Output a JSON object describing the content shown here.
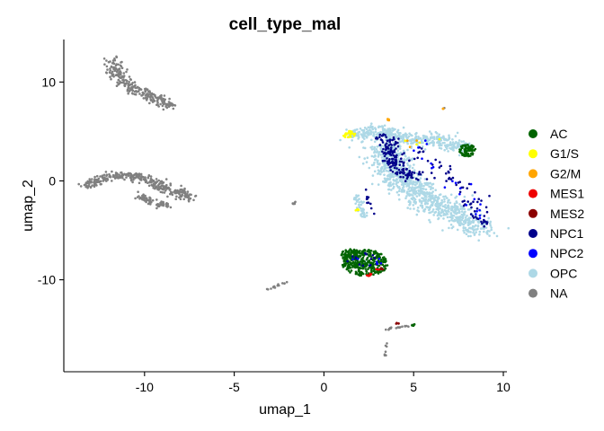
{
  "chart_data": {
    "type": "scatter",
    "title": "cell_type_mal",
    "xlabel": "umap_1",
    "ylabel": "umap_2",
    "xlim": [
      -14.5,
      10.2
    ],
    "ylim": [
      -19.3,
      14.3
    ],
    "x_ticks": [
      -10,
      -5,
      0,
      5,
      10
    ],
    "y_ticks": [
      -10,
      0,
      10
    ],
    "grid": false,
    "legend_position": "right",
    "series": [
      {
        "name": "AC",
        "color": "#006400"
      },
      {
        "name": "G1/S",
        "color": "#FFFF00"
      },
      {
        "name": "G2/M",
        "color": "#FFA500"
      },
      {
        "name": "MES1",
        "color": "#EE0000"
      },
      {
        "name": "MES2",
        "color": "#8B0000"
      },
      {
        "name": "NPC1",
        "color": "#00008B"
      },
      {
        "name": "NPC2",
        "color": "#0000FF"
      },
      {
        "name": "OPC",
        "color": "#ADD8E6"
      },
      {
        "name": "NA",
        "color": "#808080"
      }
    ],
    "clusters": [
      {
        "series": "NA",
        "shape": "curve",
        "points": [
          [
            -11.8,
            12.2
          ],
          [
            -11.6,
            11.0
          ],
          [
            -11.0,
            9.8
          ],
          [
            -10.0,
            8.8
          ],
          [
            -9.0,
            8.0
          ],
          [
            -8.4,
            7.5
          ]
        ],
        "width": 0.55,
        "n": 260
      },
      {
        "series": "NA",
        "shape": "curve",
        "points": [
          [
            -13.3,
            -0.6
          ],
          [
            -12.5,
            0.2
          ],
          [
            -11.5,
            0.6
          ],
          [
            -10.5,
            0.5
          ],
          [
            -9.5,
            -0.1
          ],
          [
            -8.5,
            -1.0
          ],
          [
            -7.5,
            -1.6
          ]
        ],
        "width": 0.5,
        "n": 330
      },
      {
        "series": "NA",
        "shape": "curve",
        "points": [
          [
            -10.4,
            -1.4
          ],
          [
            -9.6,
            -2.2
          ],
          [
            -8.8,
            -2.5
          ]
        ],
        "width": 0.35,
        "n": 70
      },
      {
        "series": "NA",
        "shape": "curve",
        "points": [
          [
            -3.1,
            -11.0
          ],
          [
            -2.6,
            -10.6
          ],
          [
            -2.1,
            -10.2
          ]
        ],
        "width": 0.12,
        "n": 14
      },
      {
        "series": "NA",
        "shape": "curve",
        "points": [
          [
            -1.8,
            -2.4
          ],
          [
            -1.5,
            -2.1
          ]
        ],
        "width": 0.08,
        "n": 6
      },
      {
        "series": "NA",
        "shape": "curve",
        "points": [
          [
            3.3,
            -15.0
          ],
          [
            4.3,
            -14.8
          ],
          [
            5.0,
            -14.6
          ]
        ],
        "width": 0.12,
        "n": 20
      },
      {
        "series": "NA",
        "shape": "curve",
        "points": [
          [
            3.5,
            -16.3
          ],
          [
            3.4,
            -17.1
          ],
          [
            3.4,
            -17.7
          ]
        ],
        "width": 0.08,
        "n": 8
      },
      {
        "series": "NA",
        "shape": "curve",
        "points": [
          [
            6.6,
            7.2
          ],
          [
            6.7,
            7.4
          ]
        ],
        "width": 0.05,
        "n": 3
      },
      {
        "series": "OPC",
        "shape": "curve",
        "points": [
          [
            1.6,
            4.6
          ],
          [
            2.5,
            5.0
          ],
          [
            3.5,
            4.7
          ],
          [
            4.5,
            4.3
          ],
          [
            5.5,
            4.2
          ],
          [
            6.5,
            4.1
          ],
          [
            7.3,
            3.6
          ],
          [
            8.0,
            3.3
          ]
        ],
        "width": 0.75,
        "n": 430
      },
      {
        "series": "OPC",
        "shape": "curve",
        "points": [
          [
            3.4,
            3.6
          ],
          [
            3.6,
            2.0
          ],
          [
            4.1,
            0.6
          ],
          [
            5.0,
            -0.8
          ],
          [
            6.0,
            -2.0
          ],
          [
            7.0,
            -3.2
          ],
          [
            8.0,
            -4.2
          ],
          [
            8.8,
            -4.7
          ]
        ],
        "width": 1.25,
        "n": 950
      },
      {
        "series": "OPC",
        "shape": "curve",
        "points": [
          [
            1.8,
            -1.5
          ],
          [
            2.0,
            -2.8
          ],
          [
            2.4,
            -3.8
          ]
        ],
        "width": 0.3,
        "n": 45
      },
      {
        "series": "OPC",
        "shape": "curve",
        "points": [
          [
            2.0,
            -8.0
          ],
          [
            2.4,
            -8.6
          ]
        ],
        "width": 0.3,
        "n": 20
      },
      {
        "series": "NPC1",
        "shape": "curve",
        "points": [
          [
            3.4,
            4.6
          ],
          [
            3.7,
            3.0
          ],
          [
            4.0,
            1.6
          ],
          [
            4.5,
            0.8
          ],
          [
            5.2,
            0.4
          ]
        ],
        "width": 0.6,
        "n": 160
      },
      {
        "series": "NPC1",
        "shape": "curve",
        "points": [
          [
            5.0,
            3.5
          ],
          [
            6.0,
            2.0
          ],
          [
            7.0,
            0.5
          ],
          [
            8.0,
            -1.5
          ],
          [
            9.0,
            -3.6
          ]
        ],
        "width": 0.9,
        "n": 55
      },
      {
        "series": "NPC1",
        "shape": "curve",
        "points": [
          [
            2.3,
            -1.0
          ],
          [
            2.5,
            -2.2
          ],
          [
            2.9,
            -3.3
          ]
        ],
        "width": 0.2,
        "n": 10
      },
      {
        "series": "NPC1",
        "shape": "curve",
        "points": [
          [
            8.4,
            -3.5
          ],
          [
            9.0,
            -4.5
          ]
        ],
        "width": 0.25,
        "n": 14
      },
      {
        "series": "NPC2",
        "shape": "curve",
        "points": [
          [
            5.2,
            4.0
          ],
          [
            5.8,
            2.5
          ],
          [
            6.6,
            1.0
          ],
          [
            7.8,
            -1.5
          ],
          [
            8.8,
            -4.0
          ]
        ],
        "width": 0.8,
        "n": 22
      },
      {
        "series": "AC",
        "shape": "blob",
        "center": [
          1.5,
          -7.5
        ],
        "rx": 0.55,
        "ry": 0.6,
        "n": 60
      },
      {
        "series": "AC",
        "shape": "blob",
        "center": [
          2.3,
          -8.3
        ],
        "rx": 1.3,
        "ry": 1.35,
        "n": 300
      },
      {
        "series": "AC",
        "shape": "blob",
        "center": [
          8.0,
          3.1
        ],
        "rx": 0.45,
        "ry": 0.65,
        "n": 75
      },
      {
        "series": "AC",
        "shape": "blob",
        "center": [
          5.0,
          -14.6
        ],
        "rx": 0.15,
        "ry": 0.12,
        "n": 6
      },
      {
        "series": "AC",
        "shape": "blob",
        "center": [
          3.1,
          -9.0
        ],
        "rx": 0.3,
        "ry": 0.25,
        "n": 6
      },
      {
        "series": "NPC1",
        "shape": "blob",
        "center": [
          2.1,
          -8.3
        ],
        "rx": 1.0,
        "ry": 1.0,
        "n": 14
      },
      {
        "series": "NPC2",
        "shape": "blob",
        "center": [
          2.5,
          -8.0
        ],
        "rx": 0.9,
        "ry": 0.9,
        "n": 6
      },
      {
        "series": "G1/S",
        "shape": "blob",
        "center": [
          1.4,
          4.7
        ],
        "rx": 0.35,
        "ry": 0.35,
        "n": 26
      },
      {
        "series": "G1/S",
        "shape": "blob",
        "center": [
          1.8,
          -2.9
        ],
        "rx": 0.15,
        "ry": 0.2,
        "n": 5
      },
      {
        "series": "G1/S",
        "shape": "blob",
        "center": [
          5.0,
          4.0
        ],
        "rx": 1.5,
        "ry": 1.0,
        "n": 4
      },
      {
        "series": "G2/M",
        "shape": "blob",
        "center": [
          3.6,
          6.2
        ],
        "rx": 0.08,
        "ry": 0.08,
        "n": 4
      },
      {
        "series": "G2/M",
        "shape": "blob",
        "center": [
          6.6,
          7.3
        ],
        "rx": 0.06,
        "ry": 0.06,
        "n": 2
      },
      {
        "series": "G2/M",
        "shape": "blob",
        "center": [
          5.2,
          3.9
        ],
        "rx": 0.8,
        "ry": 0.6,
        "n": 3
      },
      {
        "series": "MES1",
        "shape": "blob",
        "center": [
          2.5,
          -9.5
        ],
        "rx": 0.18,
        "ry": 0.15,
        "n": 6
      },
      {
        "series": "MES1",
        "shape": "blob",
        "center": [
          3.0,
          -9.0
        ],
        "rx": 0.12,
        "ry": 0.1,
        "n": 3
      },
      {
        "series": "MES2",
        "shape": "blob",
        "center": [
          4.1,
          -14.4
        ],
        "rx": 0.1,
        "ry": 0.08,
        "n": 4
      },
      {
        "series": "MES2",
        "shape": "blob",
        "center": [
          3.2,
          -8.9
        ],
        "rx": 0.1,
        "ry": 0.1,
        "n": 3
      }
    ]
  }
}
